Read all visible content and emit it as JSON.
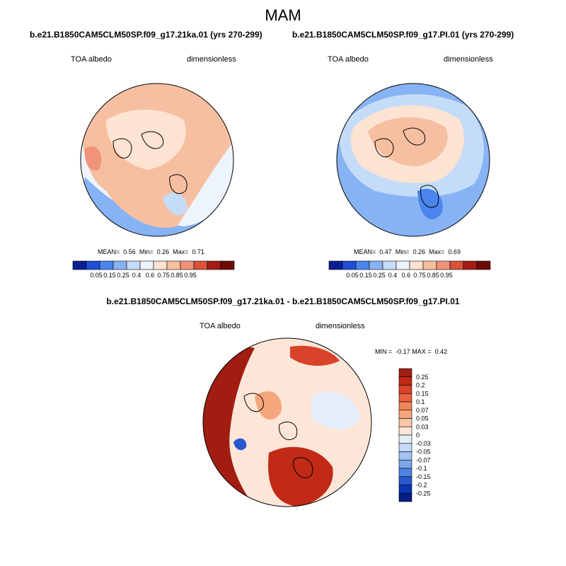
{
  "figure": {
    "season": "MAM"
  },
  "chart_data": [
    {
      "type": "heatmap",
      "projection": "north-polar-stereographic",
      "title": "b.e21.B1850CAM5CLM50SP.f09_g17.21ka.01 (yrs 270-299)",
      "variable": "TOA albedo",
      "units": "dimensionless",
      "stats": {
        "mean_label": "MEAN=",
        "mean": "0.56",
        "min_label": "Min=",
        "min": "0.26",
        "max_label": "Max=",
        "max": "0.71"
      },
      "colorbar": {
        "levels": [
          "0.05",
          "0.15",
          "0.25",
          "0.4",
          "0.6",
          "0.75",
          "0.85",
          "0.95"
        ],
        "colors": [
          "#0a1f8f",
          "#1f4fd6",
          "#4b86ee",
          "#86b3f3",
          "#c5dcf8",
          "#eef4fb",
          "#fde3d2",
          "#f7bfa1",
          "#f0937a",
          "#d9533a",
          "#a11d12",
          "#6e0a05"
        ]
      }
    },
    {
      "type": "heatmap",
      "projection": "north-polar-stereographic",
      "title": "b.e21.B1850CAM5CLM50SP.f09_g17.PI.01 (yrs 270-299)",
      "variable": "TOA albedo",
      "units": "dimensionless",
      "stats": {
        "mean_label": "MEAN=",
        "mean": "0.47",
        "min_label": "Min=",
        "min": "0.26",
        "max_label": "Max=",
        "max": "0.69"
      },
      "colorbar": {
        "levels": [
          "0.05",
          "0.15",
          "0.25",
          "0.4",
          "0.6",
          "0.75",
          "0.85",
          "0.95"
        ],
        "colors": [
          "#0a1f8f",
          "#1f4fd6",
          "#4b86ee",
          "#86b3f3",
          "#c5dcf8",
          "#eef4fb",
          "#fde3d2",
          "#f7bfa1",
          "#f0937a",
          "#d9533a",
          "#a11d12",
          "#6e0a05"
        ]
      }
    },
    {
      "type": "heatmap",
      "projection": "north-polar-stereographic",
      "title": "b.e21.B1850CAM5CLM50SP.f09_g17.21ka.01 - b.e21.B1850CAM5CLM50SP.f09_g17.PI.01",
      "variable": "TOA albedo",
      "units": "dimensionless",
      "stats": {
        "min_label": "MIN =",
        "min": "-0.17",
        "max_label": "MAX =",
        "max": "0.42"
      },
      "colorbar": {
        "levels": [
          "0.25",
          "0.2",
          "0.15",
          "0.1",
          "0.07",
          "0.05",
          "0.03",
          "0",
          "-0.03",
          "-0.05",
          "-0.07",
          "-0.1",
          "-0.15",
          "-0.2",
          "-0.25"
        ],
        "colors": [
          "#a11d12",
          "#c02a17",
          "#d9432a",
          "#e8623f",
          "#f18458",
          "#f6a67d",
          "#fac7a9",
          "#fde6d7",
          "#e6eefb",
          "#c6d9f6",
          "#a3c2f0",
          "#7ea7ea",
          "#4f82e2",
          "#2857cf",
          "#0b36b3",
          "#061f86"
        ]
      }
    }
  ]
}
